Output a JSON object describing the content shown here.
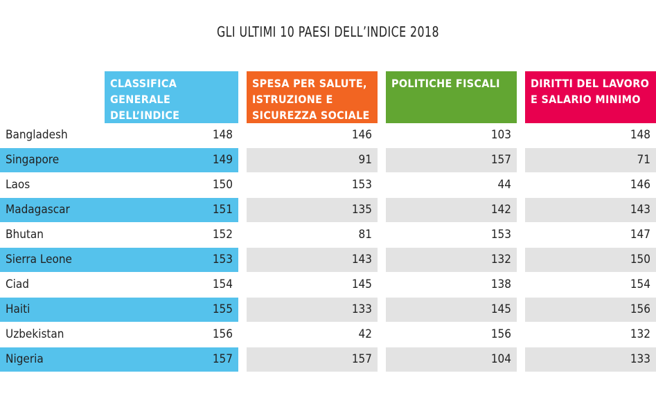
{
  "title": "GLI ULTIMI 10 PAESI DELL’INDICE 2018",
  "colors": {
    "col1": "#55c2ec",
    "col2": "#f26522",
    "col3": "#62a632",
    "col4": "#e8004f",
    "stripe": "#e3e3e3"
  },
  "chart_data": {
    "type": "table",
    "title": "GLI ULTIMI 10 PAESI DELL’INDICE 2018",
    "columns": [
      "CLASSIFICA GENERALE DELL’INDICE",
      "SPESA PER SALUTE, ISTRUZIONE E SICUREZZA SOCIALE",
      "POLITICHE FISCALI",
      "DIRITTI DEL LAVORO E SALARIO MINIMO"
    ],
    "rows": [
      {
        "country": "Bangladesh",
        "values": [
          148,
          146,
          103,
          148
        ]
      },
      {
        "country": "Singapore",
        "values": [
          149,
          91,
          157,
          71
        ]
      },
      {
        "country": "Laos",
        "values": [
          150,
          153,
          44,
          146
        ]
      },
      {
        "country": "Madagascar",
        "values": [
          151,
          135,
          142,
          143
        ]
      },
      {
        "country": "Bhutan",
        "values": [
          152,
          81,
          153,
          147
        ]
      },
      {
        "country": "Sierra Leone",
        "values": [
          153,
          143,
          132,
          150
        ]
      },
      {
        "country": "Ciad",
        "values": [
          154,
          145,
          138,
          154
        ]
      },
      {
        "country": "Haiti",
        "values": [
          155,
          133,
          145,
          156
        ]
      },
      {
        "country": "Uzbekistan",
        "values": [
          156,
          42,
          156,
          132
        ]
      },
      {
        "country": "Nigeria",
        "values": [
          157,
          157,
          104,
          133
        ]
      }
    ]
  }
}
